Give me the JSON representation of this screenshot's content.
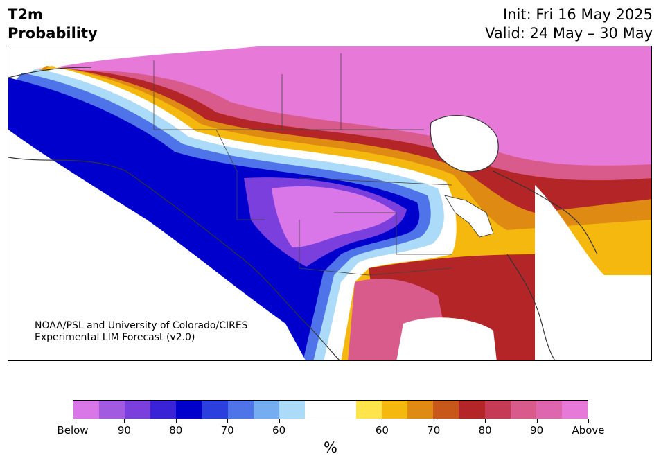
{
  "header": {
    "title_line1": "T2m",
    "title_line2": "Probability",
    "init": "Init: Fri 16 May 2025",
    "valid": "Valid: 24 May – 30 May"
  },
  "map": {
    "credit_line1": "NOAA/PSL and University of Colorado/CIRES",
    "credit_line2": "Experimental LIM Forecast (v2.0)"
  },
  "colorbar": {
    "colors": [
      "#d977e8",
      "#a25ae0",
      "#7a3fdd",
      "#3a22d6",
      "#0000cc",
      "#2a3fdd",
      "#4f73e8",
      "#75aef0",
      "#acdaf9",
      "#ffffff",
      "#ffffff",
      "#ffe44c",
      "#f4b80e",
      "#df8a13",
      "#c75819",
      "#b32527",
      "#c63a55",
      "#d85b8c",
      "#de66ae",
      "#e77ad9"
    ],
    "tick_labels": [
      "Below",
      "90",
      "80",
      "70",
      "60",
      "60",
      "70",
      "80",
      "90",
      "Above"
    ],
    "units": "%"
  }
}
